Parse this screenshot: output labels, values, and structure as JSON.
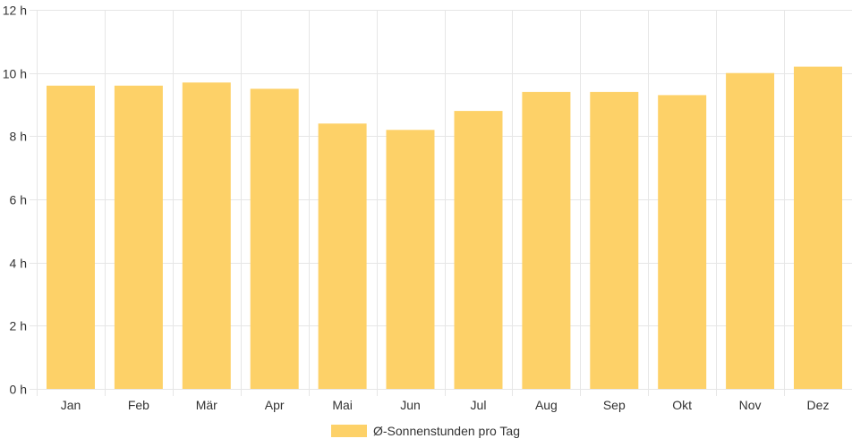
{
  "chart_data": {
    "type": "bar",
    "categories": [
      "Jan",
      "Feb",
      "Mär",
      "Apr",
      "Mai",
      "Jun",
      "Jul",
      "Aug",
      "Sep",
      "Okt",
      "Nov",
      "Dez"
    ],
    "series": [
      {
        "name": "Ø-Sonnenstunden pro Tag",
        "values": [
          9.6,
          9.6,
          9.7,
          9.5,
          8.4,
          8.2,
          8.8,
          9.4,
          9.4,
          9.3,
          10.0,
          10.2
        ],
        "color": "#fdd168"
      }
    ],
    "ylim": [
      0,
      12
    ],
    "yticks": [
      0,
      2,
      4,
      6,
      8,
      10,
      12
    ],
    "ytick_labels": [
      "0 h",
      "2 h",
      "4 h",
      "6 h",
      "8 h",
      "10 h",
      "12 h"
    ],
    "grid": true,
    "legend_position": "bottom-center"
  }
}
